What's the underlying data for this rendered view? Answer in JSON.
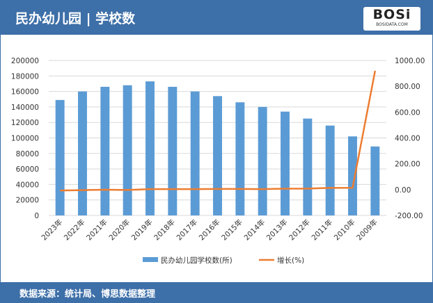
{
  "header": {
    "title": "民办幼儿园 | 学校数",
    "logo": "BOSi",
    "logo_sub": "BOSIDATA.COM"
  },
  "footer": {
    "source": "数据来源：统计局、博思数据整理"
  },
  "colors": {
    "bar": "#5b9bd5",
    "line": "#ed7d31",
    "header": "#3d6fa8"
  },
  "chart_data": {
    "type": "bar+line",
    "categories": [
      "2023年",
      "2022年",
      "2021年",
      "2020年",
      "2019年",
      "2018年",
      "2017年",
      "2016年",
      "2015年",
      "2014年",
      "2013年",
      "2012年",
      "2011年",
      "2010年",
      "2009年"
    ],
    "series": [
      {
        "name": "民办幼儿园学校数(所)",
        "type": "bar",
        "axis": "left",
        "values": [
          149000,
          160000,
          166000,
          168000,
          173000,
          166000,
          160000,
          154000,
          146000,
          140000,
          134000,
          125000,
          116000,
          102000,
          89000
        ]
      },
      {
        "name": "增长(%)",
        "type": "line",
        "axis": "right",
        "values": [
          -7,
          -4,
          -1,
          -3,
          4,
          4,
          4,
          5,
          5,
          4,
          7,
          8,
          13,
          14,
          920
        ]
      }
    ],
    "ylim_left": [
      0,
      200000
    ],
    "yticks_left": [
      "0",
      "20000",
      "40000",
      "60000",
      "80000",
      "100000",
      "120000",
      "140000",
      "160000",
      "180000",
      "200000"
    ],
    "ylim_right": [
      -200,
      1000
    ],
    "yticks_right": [
      "-200.00",
      "0.00",
      "200.00",
      "400.00",
      "600.00",
      "800.00",
      "1000.00"
    ],
    "grid": true,
    "legend": "bottom"
  }
}
